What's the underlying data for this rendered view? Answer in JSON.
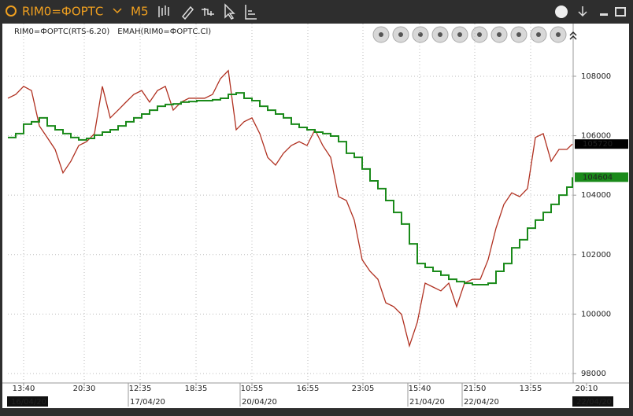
{
  "toolbar": {
    "symbol": "RIM0=ФОРТС",
    "timeframe": "M5"
  },
  "chart_data": {
    "type": "line",
    "step_series": [
      1
    ],
    "x": [
      0,
      1,
      2,
      3,
      4,
      5,
      6,
      7,
      8,
      9,
      10,
      11,
      12,
      13,
      14,
      15,
      16,
      17,
      18,
      19,
      20,
      21,
      22,
      23,
      24,
      25,
      26,
      27,
      28,
      29,
      30,
      31,
      32,
      33,
      34,
      35,
      36,
      37,
      38,
      39,
      40,
      41,
      42,
      43,
      44,
      45,
      46,
      47,
      48,
      49,
      50,
      51,
      52,
      53,
      54,
      55,
      56,
      57,
      58,
      59,
      60,
      61,
      62,
      63,
      64,
      65,
      66,
      67,
      68,
      69,
      70,
      71,
      71.7
    ],
    "series": [
      {
        "name": "RIM0=ФОРТС(RTS-6.20)",
        "color": "#b03020",
        "label_bg": "#000000",
        "values": [
          107260,
          107390,
          107660,
          107520,
          106330,
          105940,
          105540,
          104750,
          105140,
          105670,
          105800,
          106070,
          107660,
          106600,
          106860,
          107130,
          107390,
          107520,
          107130,
          107520,
          107660,
          106860,
          107130,
          107260,
          107260,
          107260,
          107390,
          107920,
          108190,
          106200,
          106470,
          106600,
          106070,
          105270,
          105010,
          105410,
          105670,
          105800,
          105670,
          106200,
          105670,
          105270,
          103950,
          103820,
          103160,
          101830,
          101440,
          101170,
          100380,
          100250,
          99990,
          98930,
          99720,
          101040,
          100910,
          100780,
          101040,
          100250,
          101040,
          101170,
          101170,
          101830,
          102890,
          103690,
          104080,
          103950,
          104220,
          105940,
          106070,
          105140,
          105540,
          105540,
          105720
        ]
      },
      {
        "name": "EMAH(RIM0=ФОРТС.Cl)",
        "color": "#1a8a1a",
        "label_bg": "#1a8a1a",
        "values": [
          105940,
          106070,
          106390,
          106470,
          106600,
          106330,
          106200,
          106070,
          105940,
          105860,
          105910,
          106020,
          106120,
          106200,
          106330,
          106470,
          106600,
          106730,
          106860,
          106990,
          107050,
          107070,
          107130,
          107150,
          107180,
          107180,
          107210,
          107260,
          107390,
          107440,
          107260,
          107180,
          106990,
          106860,
          106730,
          106600,
          106390,
          106280,
          106200,
          106120,
          106070,
          105990,
          105800,
          105410,
          105270,
          104880,
          104480,
          104220,
          103820,
          103420,
          103030,
          102360,
          101700,
          101570,
          101440,
          101310,
          101170,
          101090,
          101040,
          100990,
          100990,
          101040,
          101440,
          101700,
          102230,
          102500,
          102890,
          103160,
          103420,
          103690,
          104000,
          104270,
          104604
        ]
      }
    ],
    "xlim": [
      0,
      71.8
    ],
    "ylim": [
      97735,
      109772
    ],
    "yticks": [
      98000,
      100000,
      102000,
      104000,
      106000,
      108000
    ],
    "xticks": [
      {
        "value": 2,
        "label": "13:40"
      },
      {
        "value": 9.7,
        "label": "20:30"
      },
      {
        "value": 16.8,
        "label": "12:35"
      },
      {
        "value": 23.9,
        "label": "18:35"
      },
      {
        "value": 31,
        "label": "10:55"
      },
      {
        "value": 38.1,
        "label": "16:55"
      },
      {
        "value": 45.1,
        "label": "23:05"
      },
      {
        "value": 52.3,
        "label": "15:40"
      },
      {
        "value": 59.3,
        "label": "21:50"
      },
      {
        "value": 66.4,
        "label": "13:55"
      },
      {
        "value": 73.5,
        "label": "20:10"
      }
    ],
    "date_ticks": [
      {
        "value": 0.2,
        "label": "16/04/20"
      },
      {
        "value": 15.3,
        "label": "17/04/20"
      },
      {
        "value": 29.5,
        "label": "20/04/20"
      },
      {
        "value": 50.8,
        "label": "21/04/20"
      },
      {
        "value": 57.7,
        "label": "22/04/20"
      },
      {
        "value": 72,
        "label": "22/04/20"
      }
    ],
    "grid": true
  }
}
